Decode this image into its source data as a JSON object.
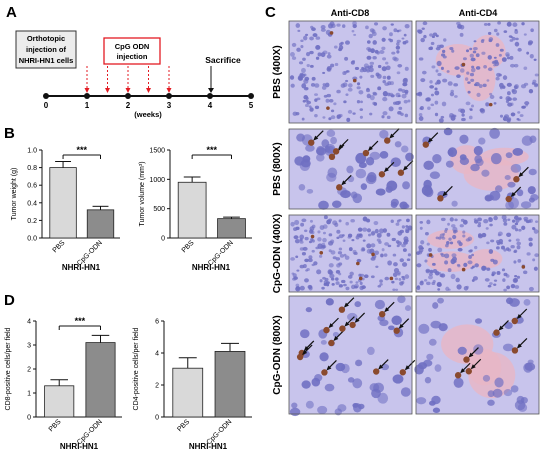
{
  "panel_labels": {
    "a": "A",
    "b": "B",
    "c": "C",
    "d": "D"
  },
  "timeline": {
    "box_text": [
      "Orthotopic",
      "injection of",
      "NHRI-HN1 cells"
    ],
    "cpg_text": [
      "CpG ODN",
      "injection"
    ],
    "sacrifice": "Sacrifice",
    "ticks": [
      "0",
      "1",
      "2",
      "3",
      "4",
      "5"
    ],
    "unit": "(weeks)",
    "injection_weeks": [
      1.0,
      1.5,
      2.0,
      2.5,
      3.0
    ]
  },
  "chart_data": [
    {
      "type": "bar",
      "panel": "B",
      "categories": [
        "PBS",
        "CpG-ODN"
      ],
      "values": [
        0.8,
        0.32
      ],
      "errors": [
        0.07,
        0.04
      ],
      "ylabel": "Tumor weight (g)",
      "ylim": [
        0,
        1.0
      ],
      "yticks": [
        "0.0",
        "0.2",
        "0.4",
        "0.6",
        "0.8",
        "1.0"
      ],
      "xgroup": "NHRI-HN1",
      "significance": "***",
      "colors": [
        "#d9d9d9",
        "#8c8c8c"
      ]
    },
    {
      "type": "bar",
      "panel": "B",
      "categories": [
        "PBS",
        "CpG-ODN"
      ],
      "values": [
        950,
        330
      ],
      "errors": [
        90,
        25
      ],
      "ylabel": "Tumor volume (mm³)",
      "ylim": [
        0,
        1500
      ],
      "yticks": [
        "0",
        "500",
        "1000",
        "1500"
      ],
      "xgroup": "NHRI-HN1",
      "significance": "***",
      "colors": [
        "#d9d9d9",
        "#8c8c8c"
      ]
    },
    {
      "type": "bar",
      "panel": "D",
      "categories": [
        "PBS",
        "CpG-ODN"
      ],
      "values": [
        1.3,
        3.1
      ],
      "errors": [
        0.25,
        0.3
      ],
      "ylabel": "CD8-positive cells/per field",
      "ylim": [
        0,
        4
      ],
      "yticks": [
        "0",
        "1",
        "2",
        "3",
        "4"
      ],
      "xgroup": "NHRI-HN1",
      "significance": "***",
      "colors": [
        "#d9d9d9",
        "#8c8c8c"
      ]
    },
    {
      "type": "bar",
      "panel": "D",
      "categories": [
        "PBS",
        "CpG-ODN"
      ],
      "values": [
        3.05,
        4.1
      ],
      "errors": [
        0.65,
        0.5
      ],
      "ylabel": "CD4-positive cells/per field",
      "ylim": [
        0,
        6
      ],
      "yticks": [
        "0",
        "2",
        "4",
        "6"
      ],
      "xgroup": "NHRI-HN1",
      "significance": "",
      "colors": [
        "#d9d9d9",
        "#8c8c8c"
      ]
    }
  ],
  "micrographs": {
    "columns": [
      "Anti-CD8",
      "Anti-CD4"
    ],
    "rows": [
      "PBS (400X)",
      "PBS (800X)",
      "CpG-ODN (400X)",
      "CpG-ODN (800X)"
    ],
    "colors": {
      "hematoxylin": "#6f6fc2",
      "background": "#c8c4ec",
      "dab": "#8a4a2e",
      "eosin": "#e9b6c6"
    }
  }
}
